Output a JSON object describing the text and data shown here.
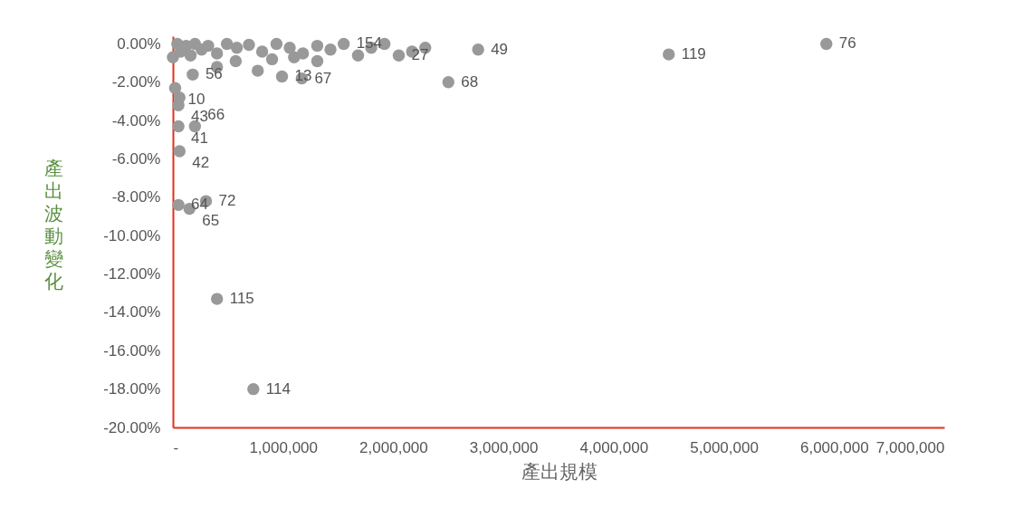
{
  "chart_data": {
    "type": "scatter",
    "xlabel": "產出規模",
    "ylabel": "產出波動變化",
    "marker": "circle",
    "grid": false,
    "xlim": [
      0,
      7000000
    ],
    "ylim": [
      -20,
      0.4
    ],
    "xticks": [
      {
        "value": 0,
        "label": "-"
      },
      {
        "value": 1000000,
        "label": "1,000,000"
      },
      {
        "value": 2000000,
        "label": "2,000,000"
      },
      {
        "value": 3000000,
        "label": "3,000,000"
      },
      {
        "value": 4000000,
        "label": "4,000,000"
      },
      {
        "value": 5000000,
        "label": "5,000,000"
      },
      {
        "value": 6000000,
        "label": "6,000,000"
      },
      {
        "value": 7000000,
        "label": "7,000,000"
      }
    ],
    "yticks": [
      {
        "value": 0,
        "label": "0.00%"
      },
      {
        "value": -2,
        "label": "-2.00%"
      },
      {
        "value": -4,
        "label": "-4.00%"
      },
      {
        "value": -6,
        "label": "-6.00%"
      },
      {
        "value": -8,
        "label": "-8.00%"
      },
      {
        "value": -10,
        "label": "-10.00%"
      },
      {
        "value": -12,
        "label": "-12.00%"
      },
      {
        "value": -14,
        "label": "-14.00%"
      },
      {
        "value": -16,
        "label": "-16.00%"
      },
      {
        "value": -18,
        "label": "-18.00%"
      },
      {
        "value": -20,
        "label": "-20.00%"
      }
    ],
    "series": [
      {
        "color": "#999999",
        "x": [
          5930000,
          4500000,
          2770000,
          2500000,
          1170000,
          990000,
          180000,
          20000,
          60000,
          50000,
          50000,
          200000,
          60000,
          300000,
          50000,
          150000,
          400000,
          730000,
          0,
          40000,
          70000,
          120000,
          160000,
          200000,
          260000,
          320000,
          400000,
          490000,
          580000,
          690000,
          810000,
          940000,
          1060000,
          1180000,
          1310000,
          1430000,
          1550000,
          1680000,
          1800000,
          1920000,
          2050000,
          2170000,
          2290000,
          900000,
          1100000,
          570000,
          400000,
          770000,
          1310000
        ],
        "values": [
          0,
          -0.55,
          -0.3,
          -2.0,
          -1.8,
          -1.7,
          -1.6,
          -2.3,
          -2.8,
          -3.2,
          -4.3,
          -4.3,
          -5.6,
          -8.2,
          -8.4,
          -8.6,
          -13.3,
          -18.0,
          -0.7,
          0,
          -0.4,
          -0.1,
          -0.6,
          0,
          -0.3,
          -0.1,
          -0.5,
          0,
          -0.2,
          -0.05,
          -0.4,
          0,
          -0.2,
          -0.5,
          -0.1,
          -0.3,
          0,
          -0.6,
          -0.2,
          0,
          -0.6,
          -0.4,
          -0.2,
          -0.8,
          -0.7,
          -0.9,
          -1.2,
          -1.4,
          -0.9
        ]
      }
    ],
    "annotations": [
      {
        "text": "76",
        "x": 5930000,
        "y": 0
      },
      {
        "text": "119",
        "x": 4500000,
        "y": -0.55
      },
      {
        "text": "49",
        "x": 2770000,
        "y": -0.3
      },
      {
        "text": "68",
        "x": 2500000,
        "y": -2.0
      },
      {
        "text": "67",
        "x": 1170000,
        "y": -1.8
      },
      {
        "text": "13",
        "x": 990000,
        "y": -1.7
      },
      {
        "text": "56",
        "x": 180000,
        "y": -1.6
      },
      {
        "text": "10",
        "x": 20000,
        "y": -2.3
      },
      {
        "text": "43",
        "x": 50000,
        "y": -3.2
      },
      {
        "text": "41",
        "x": 50000,
        "y": -4.3
      },
      {
        "text": "66",
        "x": 200000,
        "y": -4.3
      },
      {
        "text": "42",
        "x": 60000,
        "y": -5.6
      },
      {
        "text": "72",
        "x": 300000,
        "y": -8.2
      },
      {
        "text": "64",
        "x": 50000,
        "y": -8.4
      },
      {
        "text": "65",
        "x": 150000,
        "y": -8.6
      },
      {
        "text": "115",
        "x": 400000,
        "y": -13.3
      },
      {
        "text": "114",
        "x": 730000,
        "y": -18.0
      },
      {
        "text": "154",
        "x": 1550000,
        "y": 0
      },
      {
        "text": "27",
        "x": 2050000,
        "y": -0.6
      }
    ]
  }
}
